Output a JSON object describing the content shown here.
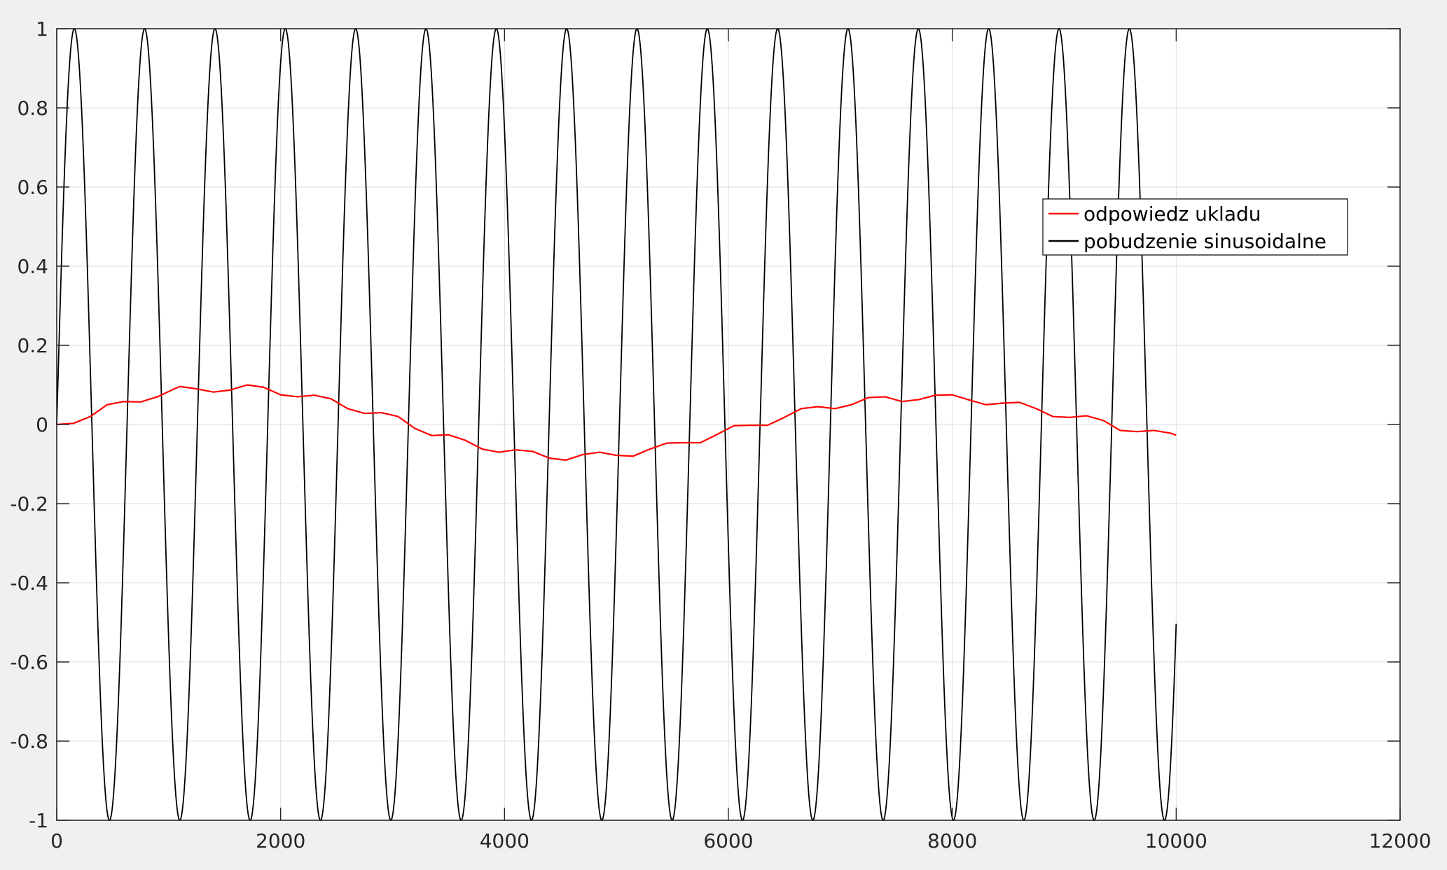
{
  "chart_data": {
    "type": "line",
    "title": "",
    "xlabel": "",
    "ylabel": "",
    "xlim": [
      0,
      12000
    ],
    "ylim": [
      -1,
      1
    ],
    "x_ticks": [
      0,
      2000,
      4000,
      6000,
      8000,
      10000,
      12000
    ],
    "y_ticks": [
      -1,
      -0.8,
      -0.6,
      -0.4,
      -0.2,
      0,
      0.2,
      0.4,
      0.6,
      0.8,
      1
    ],
    "x_tick_labels": [
      "0",
      "2000",
      "4000",
      "6000",
      "8000",
      "10000",
      "12000"
    ],
    "y_tick_labels": [
      "-1",
      "-0.8",
      "-0.6",
      "-0.4",
      "-0.2",
      "0",
      "0.2",
      "0.4",
      "0.6",
      "0.8",
      "1"
    ],
    "grid": true,
    "legend_position": "inside-right",
    "series": [
      {
        "name": "odpowiedz ukladu",
        "color": "#ff0000",
        "x": [
          0,
          150,
          300,
          450,
          600,
          750,
          900,
          1050,
          1100,
          1250,
          1400,
          1550,
          1700,
          1850,
          2000,
          2150,
          2300,
          2450,
          2600,
          2750,
          2900,
          3050,
          3200,
          3350,
          3500,
          3650,
          3800,
          3950,
          4100,
          4250,
          4400,
          4550,
          4700,
          4850,
          5000,
          5150,
          5300,
          5450,
          5600,
          5750,
          5900,
          6050,
          6200,
          6350,
          6500,
          6650,
          6800,
          6950,
          7100,
          7250,
          7400,
          7550,
          7700,
          7850,
          8000,
          8150,
          8300,
          8450,
          8600,
          8750,
          8900,
          9050,
          9200,
          9350,
          9500,
          9650,
          9800,
          9950,
          10000
        ],
        "y": [
          0.0,
          0.003,
          0.02,
          0.05,
          0.058,
          0.057,
          0.07,
          0.09,
          0.096,
          0.09,
          0.082,
          0.087,
          0.1,
          0.094,
          0.075,
          0.07,
          0.074,
          0.065,
          0.04,
          0.028,
          0.03,
          0.02,
          -0.01,
          -0.028,
          -0.026,
          -0.04,
          -0.062,
          -0.07,
          -0.064,
          -0.068,
          -0.085,
          -0.09,
          -0.076,
          -0.07,
          -0.078,
          -0.08,
          -0.062,
          -0.047,
          -0.046,
          -0.046,
          -0.025,
          -0.003,
          -0.002,
          -0.002,
          0.018,
          0.04,
          0.045,
          0.04,
          0.05,
          0.068,
          0.07,
          0.058,
          0.063,
          0.074,
          0.075,
          0.062,
          0.05,
          0.054,
          0.056,
          0.04,
          0.02,
          0.018,
          0.022,
          0.01,
          -0.015,
          -0.018,
          -0.015,
          -0.022,
          -0.027
        ]
      },
      {
        "name": "pobudzenie sinusoidalne",
        "color": "#000000",
        "function": "sin(2*pi*x/628.3)",
        "period": 628.3,
        "amplitude": 1,
        "x_range": [
          0,
          10000
        ],
        "end_value": -0.51
      }
    ]
  }
}
